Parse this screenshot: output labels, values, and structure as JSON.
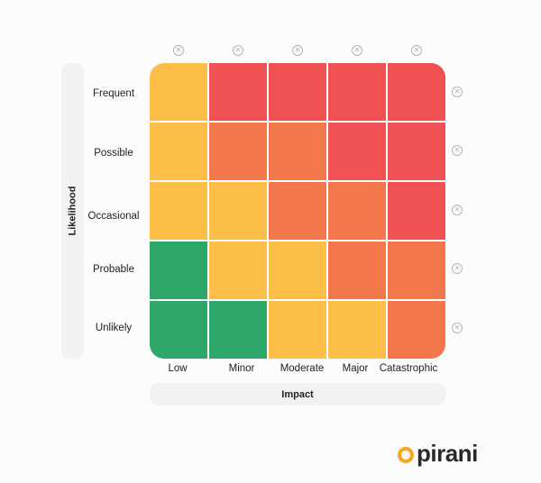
{
  "y_axis": {
    "label": "Likelihood"
  },
  "x_axis": {
    "label": "Impact"
  },
  "rows": [
    "Frequent",
    "Possible",
    "Occasional",
    "Probable",
    "Unlikely"
  ],
  "columns": [
    "Low",
    "Minor",
    "Moderate",
    "Major",
    "Catastrophic"
  ],
  "colors": {
    "low": "#2ea86a",
    "medium": "#fdbf47",
    "high": "#f2774a",
    "extreme": "#f05153"
  },
  "matrix": [
    [
      "medium",
      "extreme",
      "extreme",
      "extreme",
      "extreme"
    ],
    [
      "medium",
      "high",
      "high",
      "extreme",
      "extreme"
    ],
    [
      "medium",
      "medium",
      "high",
      "high",
      "extreme"
    ],
    [
      "low",
      "medium",
      "medium",
      "high",
      "high"
    ],
    [
      "low",
      "low",
      "medium",
      "medium",
      "high"
    ]
  ],
  "icons": {
    "remove": "close-circle-icon"
  },
  "brand": {
    "name": "pirani",
    "accent": "#f5a623"
  }
}
